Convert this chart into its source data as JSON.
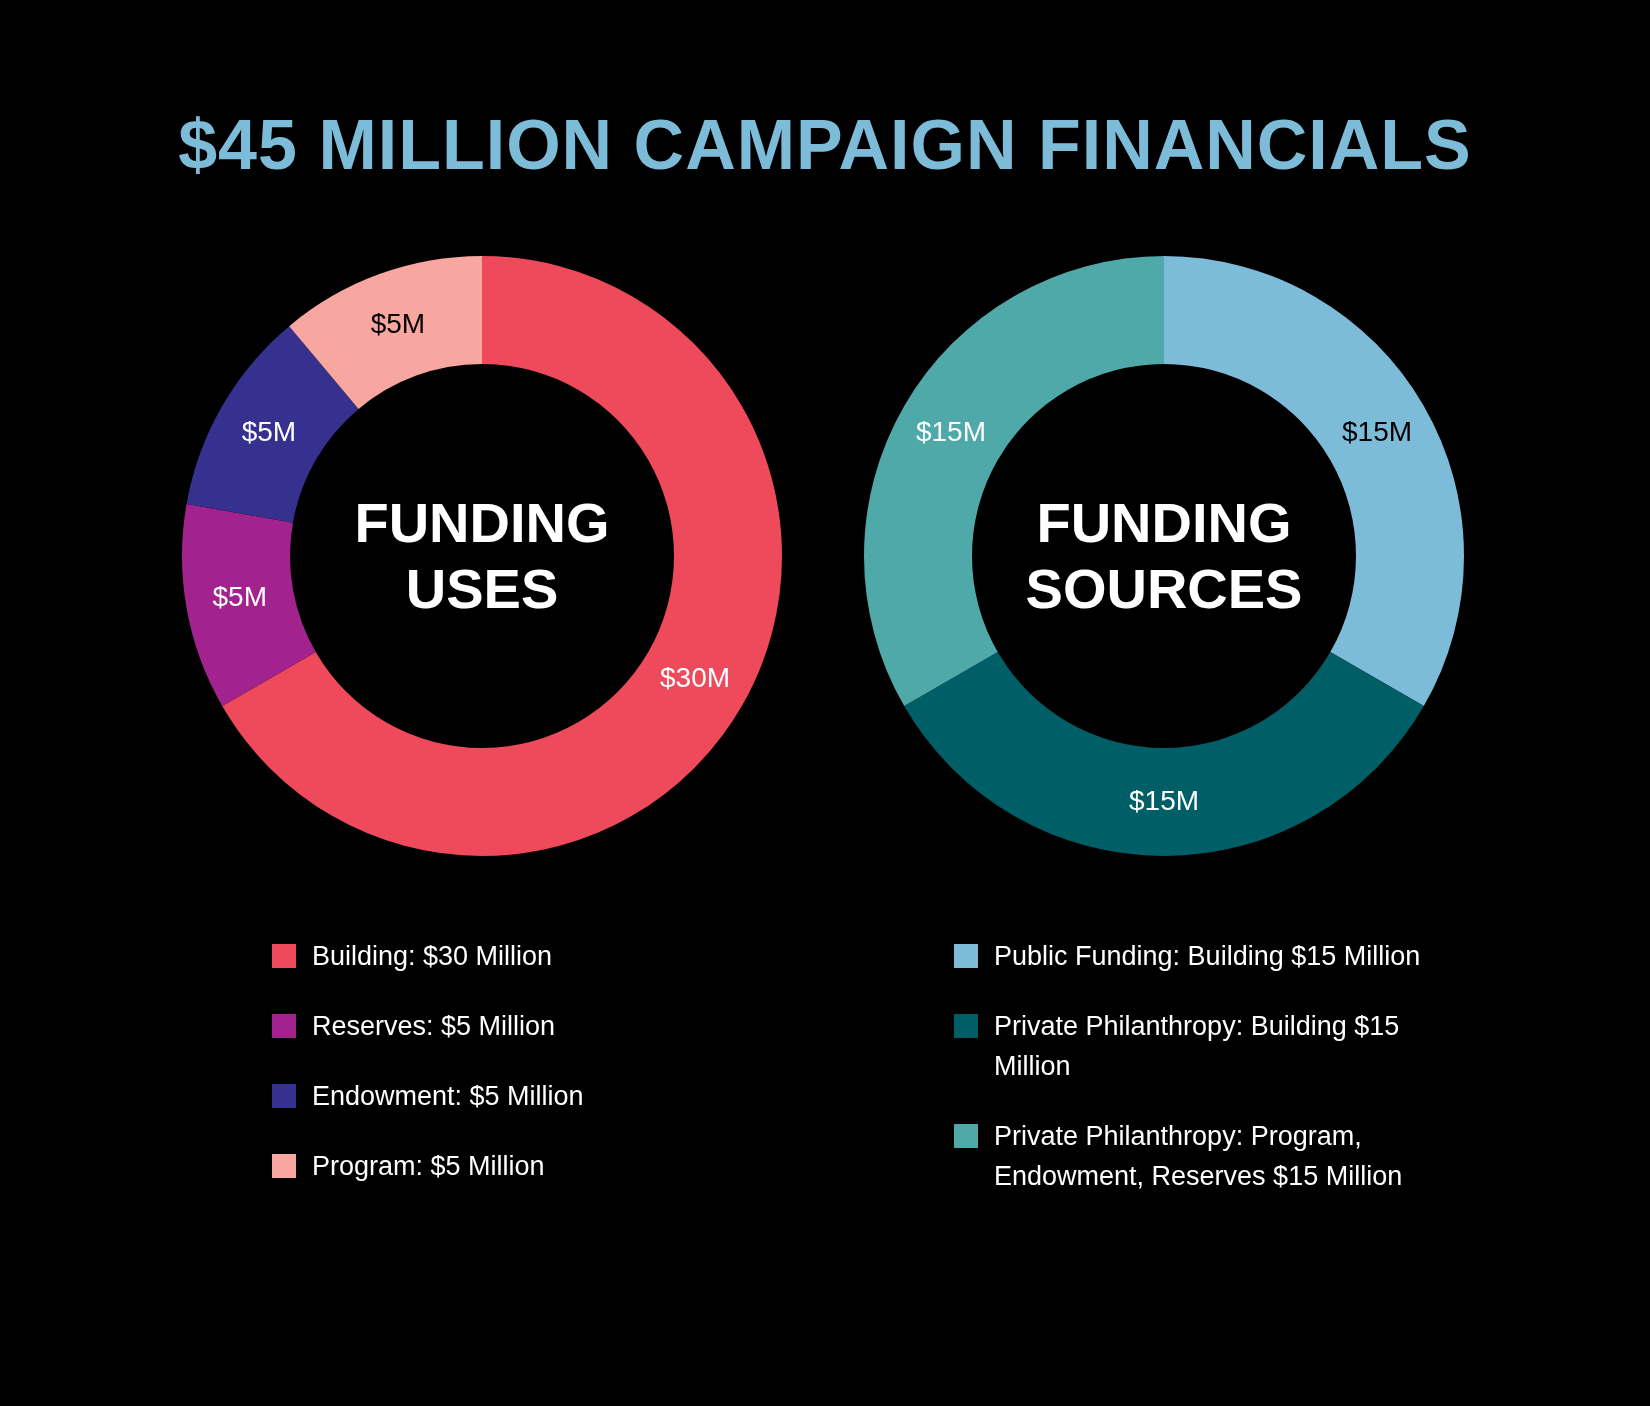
{
  "chart_data": [
    {
      "type": "donut",
      "title": "FUNDING USES",
      "annotations": [
        "$45 MILLION CAMPAIGN FINANCIALS"
      ],
      "categories": [
        "Building: $30 Million",
        "Reserves: $5 Million",
        "Endowment: $5 Million",
        "Program: $5 Million"
      ],
      "values": [
        30,
        5,
        5,
        5
      ],
      "colors": [
        "#ef4a5c",
        "#a3238e",
        "#36308e",
        "#f7a6a0"
      ],
      "value_labels": [
        "$30M",
        "$5M",
        "$5M",
        "$5M"
      ],
      "legend": "bottom"
    },
    {
      "type": "donut",
      "title": "FUNDING SOURCES",
      "categories": [
        "Public Funding: Building $15 Million",
        "Private Philanthropy: Building $15 Million",
        "Private Philanthropy: Program, Endowment, Reserves $15 Million"
      ],
      "values": [
        15,
        15,
        15
      ],
      "colors": [
        "#7dbcd8",
        "#005f66",
        "#4fa9a9"
      ],
      "value_labels": [
        "$15M",
        "$15M",
        "$15M"
      ],
      "legend": "bottom"
    }
  ]
}
